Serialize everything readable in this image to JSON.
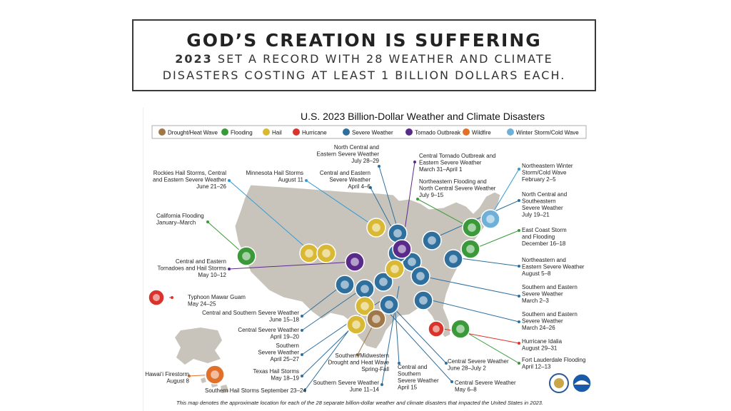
{
  "slide": {
    "title": "GOD’S CREATION IS SUFFERING",
    "subtitle_year": "2023",
    "subtitle_rest": "SET A RECORD WITH 28 WEATHER AND CLIMATE",
    "subtitle_line2": "DISASTERS COSTING AT LEAST 1 BILLION DOLLARS EACH."
  },
  "map": {
    "title": "U.S. 2023 Billion-Dollar Weather and Climate Disasters",
    "footnote": "This map denotes the approximate location for each of the 28 separate billion-dollar weather and climate disasters that impacted the United States in 2023.",
    "legend": [
      {
        "label": "Drought/Heat Wave",
        "icon": "drought-icon",
        "color": "#a07848"
      },
      {
        "label": "Flooding",
        "icon": "flooding-icon",
        "color": "#3a9a3a"
      },
      {
        "label": "Hail",
        "icon": "hail-icon",
        "color": "#d9b833"
      },
      {
        "label": "Hurricane",
        "icon": "hurricane-icon",
        "color": "#d9332b"
      },
      {
        "label": "Severe Weather",
        "icon": "severe-weather-icon",
        "color": "#2e6f9e"
      },
      {
        "label": "Tornado Outbreak",
        "icon": "tornado-icon",
        "color": "#5a2a8a"
      },
      {
        "label": "Wildfire",
        "icon": "wildfire-icon",
        "color": "#e0702a"
      },
      {
        "label": "Winter Storm/Cold Wave",
        "icon": "winter-storm-icon",
        "color": "#6fb0d8"
      }
    ],
    "labels": {
      "nc_east_jul": [
        "North Central and",
        "Eastern Severe Weather",
        "July 28–29"
      ],
      "rockies": [
        "Rockies Hail Storms, Central",
        "and Eastern Severe Weather",
        "June 21–26"
      ],
      "minnesota": [
        "Minnesota Hail Storms",
        "August 11"
      ],
      "central_eastern_apr": [
        "Central and Eastern",
        "Severe Weather",
        "April 4–6"
      ],
      "central_tornado": [
        "Central Tornado Outbreak and",
        "Eastern Severe Weather",
        "March 31–April 1"
      ],
      "ne_flooding": [
        "Northeastern Flooding and",
        "North Central Severe Weather",
        "July 9–15"
      ],
      "ne_winter": [
        "Northeastern Winter",
        "Storm/Cold Wave",
        "February 2–5"
      ],
      "nc_se_jul": [
        "North Central and",
        "Southeastern",
        "Severe Weather",
        "July 19–21"
      ],
      "california": [
        "California Flooding",
        "January–March"
      ],
      "east_coast": [
        "East Coast Storm",
        "and Flooding",
        "December 16–18"
      ],
      "central_tornado_may": [
        "Central and Eastern",
        "Tornadoes and Hail Storms",
        "May 10–12"
      ],
      "ne_aug": [
        "Northeastern and",
        "Eastern Severe Weather",
        "August 5–8"
      ],
      "typhoon": [
        "Typhoon Mawar Guam",
        "May 24–25"
      ],
      "southern_eastern_mar2": [
        "Southern and Eastern",
        "Severe Weather",
        "March 2–3"
      ],
      "central_southern_jun": [
        "Central and Southern Severe Weather",
        "June 15–18"
      ],
      "southern_eastern_mar24": [
        "Southern and Eastern",
        "Severe Weather",
        "March 24–26"
      ],
      "central_apr19": [
        "Central Severe Weather",
        "April 19–20"
      ],
      "hurricane_idalia": [
        "Hurricane Idalia",
        "August 29–31"
      ],
      "southern_apr25": [
        "Southern",
        "Severe Weather",
        "April 25–27"
      ],
      "drought": [
        "Southern/Midwestern",
        "Drought and Heat Wave",
        "Spring-Fall"
      ],
      "central_jun28": [
        "Central Severe Weather",
        "June 28–July 2"
      ],
      "fort_lauderdale": [
        "Fort Lauderdale Flooding",
        "April 12–13"
      ],
      "texas_hail": [
        "Texas Hail Storms",
        "May 18–19"
      ],
      "central_southern_apr15": [
        "Central and",
        "Southern",
        "Severe Weather",
        "April 15"
      ],
      "central_may6": [
        "Central Severe Weather",
        "May 6–8"
      ],
      "hawaii": [
        "Hawai‘i Firestorm",
        "August 8"
      ],
      "southern_jun11": [
        "Southern Severe Weather",
        "June 11–14"
      ],
      "southern_hail_sep": [
        "Southern Hail Storms September 23–24"
      ]
    }
  }
}
